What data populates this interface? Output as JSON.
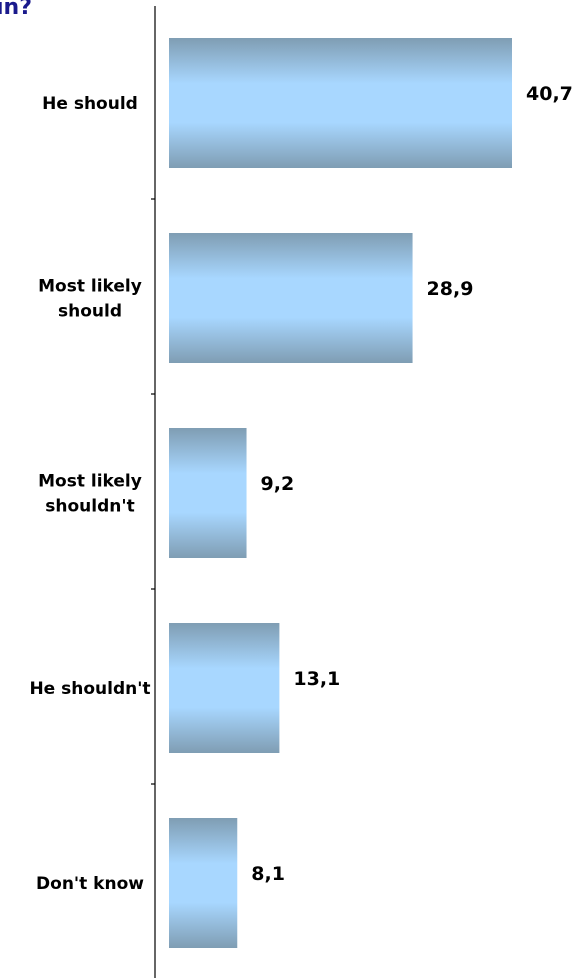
{
  "title_fragment": "ın?",
  "chart_data": {
    "type": "bar",
    "orientation": "horizontal",
    "title": "",
    "xlabel": "",
    "ylabel": "",
    "categories": [
      [
        "He should"
      ],
      [
        "Most likely",
        "should"
      ],
      [
        "Most likely",
        "shouldn't"
      ],
      [
        "He shouldn't"
      ],
      [
        "Don't know"
      ]
    ],
    "values": [
      40.7,
      28.9,
      9.2,
      13.1,
      8.1
    ],
    "value_labels": [
      "40,7",
      "28,9",
      "9,2",
      "13,1",
      "8,1"
    ],
    "xlim": [
      0,
      40.7
    ],
    "grid": false,
    "legend": "none",
    "colors": {
      "bar_center": "#a9d8ff",
      "bar_edge": "#7f9fb6",
      "axis": "#000000",
      "title": "#1a1a8c"
    }
  }
}
